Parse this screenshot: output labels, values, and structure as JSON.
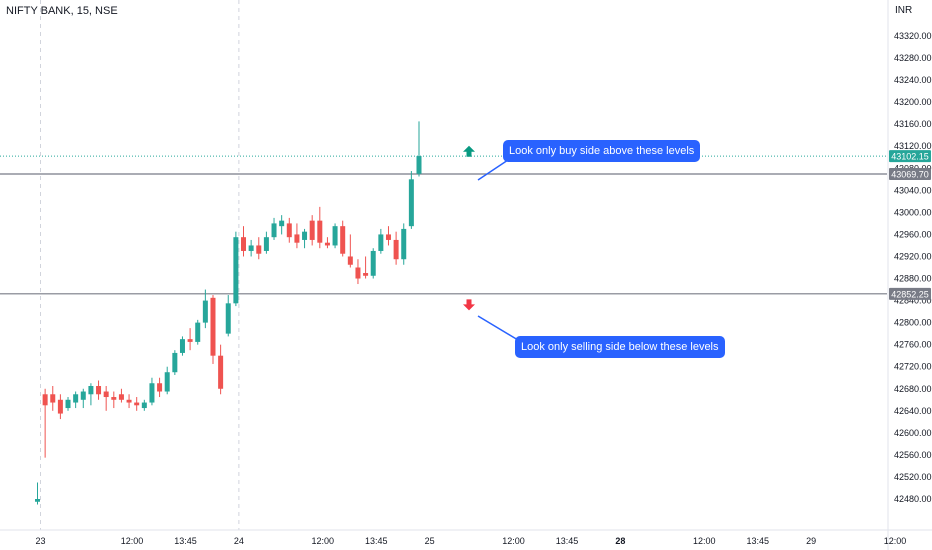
{
  "header": {
    "title": "NIFTY BANK, 15, NSE",
    "currency": "INR"
  },
  "chart_data": {
    "type": "candlestick",
    "ylim": [
      42460,
      43360
    ],
    "y_ticks": [
      43320,
      43280,
      43240,
      43200,
      43160,
      43120,
      43080,
      43040,
      43000,
      42960,
      42920,
      42880,
      42840,
      42800,
      42760,
      42720,
      42680,
      42640,
      42600,
      42560,
      42520,
      42480
    ],
    "y_tick_labels": [
      "43320.00",
      "43280.00",
      "43240.00",
      "43200.00",
      "43160.00",
      "43120.00",
      "43080.00",
      "43040.00",
      "43000.00",
      "42960.00",
      "42920.00",
      "42880.00",
      "42840.00",
      "42800.00",
      "42760.00",
      "42720.00",
      "42680.00",
      "42640.00",
      "42600.00",
      "42560.00",
      "42520.00",
      "42480.00"
    ],
    "x_tick_labels": [
      {
        "label": "23",
        "bold": false,
        "bar": 0
      },
      {
        "label": "12:00",
        "bold": false,
        "bar": 12
      },
      {
        "label": "13:45",
        "bold": false,
        "bar": 19
      },
      {
        "label": "24",
        "bold": false,
        "bar": 26
      },
      {
        "label": "12:00",
        "bold": false,
        "bar": 37
      },
      {
        "label": "13:45",
        "bold": false,
        "bar": 44
      },
      {
        "label": "25",
        "bold": false,
        "bar": 51
      },
      {
        "label": "12:00",
        "bold": false,
        "bar": 62
      },
      {
        "label": "13:45",
        "bold": false,
        "bar": 69
      },
      {
        "label": "28",
        "bold": true,
        "bar": 76
      },
      {
        "label": "12:00",
        "bold": false,
        "bar": 87
      },
      {
        "label": "13:45",
        "bold": false,
        "bar": 94
      },
      {
        "label": "29",
        "bold": false,
        "bar": 101
      },
      {
        "label": "12:00",
        "bold": false,
        "bar": 112
      }
    ],
    "session_dividers": [
      0,
      26
    ],
    "candles": [
      {
        "o": 42475,
        "h": 42510,
        "l": 42470,
        "c": 42480
      },
      {
        "o": 42670,
        "h": 42680,
        "l": 42555,
        "c": 42650
      },
      {
        "o": 42670,
        "h": 42685,
        "l": 42640,
        "c": 42655
      },
      {
        "o": 42660,
        "h": 42670,
        "l": 42625,
        "c": 42635
      },
      {
        "o": 42645,
        "h": 42665,
        "l": 42640,
        "c": 42660
      },
      {
        "o": 42655,
        "h": 42675,
        "l": 42645,
        "c": 42670
      },
      {
        "o": 42660,
        "h": 42680,
        "l": 42645,
        "c": 42675
      },
      {
        "o": 42670,
        "h": 42690,
        "l": 42650,
        "c": 42685
      },
      {
        "o": 42685,
        "h": 42695,
        "l": 42660,
        "c": 42670
      },
      {
        "o": 42675,
        "h": 42685,
        "l": 42640,
        "c": 42665
      },
      {
        "o": 42665,
        "h": 42675,
        "l": 42645,
        "c": 42660
      },
      {
        "o": 42670,
        "h": 42680,
        "l": 42655,
        "c": 42660
      },
      {
        "o": 42660,
        "h": 42670,
        "l": 42645,
        "c": 42655
      },
      {
        "o": 42655,
        "h": 42665,
        "l": 42640,
        "c": 42650
      },
      {
        "o": 42645,
        "h": 42660,
        "l": 42640,
        "c": 42655
      },
      {
        "o": 42655,
        "h": 42700,
        "l": 42650,
        "c": 42690
      },
      {
        "o": 42690,
        "h": 42700,
        "l": 42665,
        "c": 42675
      },
      {
        "o": 42675,
        "h": 42720,
        "l": 42670,
        "c": 42710
      },
      {
        "o": 42710,
        "h": 42750,
        "l": 42705,
        "c": 42745
      },
      {
        "o": 42745,
        "h": 42775,
        "l": 42740,
        "c": 42770
      },
      {
        "o": 42770,
        "h": 42790,
        "l": 42750,
        "c": 42765
      },
      {
        "o": 42765,
        "h": 42805,
        "l": 42760,
        "c": 42800
      },
      {
        "o": 42800,
        "h": 42860,
        "l": 42790,
        "c": 42840
      },
      {
        "o": 42845,
        "h": 42850,
        "l": 42725,
        "c": 42740
      },
      {
        "o": 42740,
        "h": 42760,
        "l": 42670,
        "c": 42680
      },
      {
        "o": 42780,
        "h": 42850,
        "l": 42775,
        "c": 42835
      },
      {
        "o": 42835,
        "h": 42965,
        "l": 42830,
        "c": 42955
      },
      {
        "o": 42955,
        "h": 42975,
        "l": 42920,
        "c": 42930
      },
      {
        "o": 42930,
        "h": 42950,
        "l": 42920,
        "c": 42940
      },
      {
        "o": 42940,
        "h": 42955,
        "l": 42915,
        "c": 42925
      },
      {
        "o": 42930,
        "h": 42965,
        "l": 42925,
        "c": 42955
      },
      {
        "o": 42955,
        "h": 42990,
        "l": 42950,
        "c": 42980
      },
      {
        "o": 42975,
        "h": 42995,
        "l": 42960,
        "c": 42985
      },
      {
        "o": 42980,
        "h": 42990,
        "l": 42945,
        "c": 42955
      },
      {
        "o": 42960,
        "h": 42980,
        "l": 42935,
        "c": 42945
      },
      {
        "o": 42950,
        "h": 42970,
        "l": 42935,
        "c": 42965
      },
      {
        "o": 42985,
        "h": 42995,
        "l": 42940,
        "c": 42950
      },
      {
        "o": 42985,
        "h": 43010,
        "l": 42935,
        "c": 42945
      },
      {
        "o": 42945,
        "h": 42955,
        "l": 42935,
        "c": 42940
      },
      {
        "o": 42940,
        "h": 42980,
        "l": 42935,
        "c": 42975
      },
      {
        "o": 42975,
        "h": 42985,
        "l": 42920,
        "c": 42925
      },
      {
        "o": 42920,
        "h": 42960,
        "l": 42900,
        "c": 42905
      },
      {
        "o": 42900,
        "h": 42915,
        "l": 42870,
        "c": 42880
      },
      {
        "o": 42890,
        "h": 42920,
        "l": 42880,
        "c": 42885
      },
      {
        "o": 42885,
        "h": 42935,
        "l": 42880,
        "c": 42930
      },
      {
        "o": 42930,
        "h": 42970,
        "l": 42925,
        "c": 42960
      },
      {
        "o": 42960,
        "h": 42975,
        "l": 42940,
        "c": 42950
      },
      {
        "o": 42950,
        "h": 42965,
        "l": 42905,
        "c": 42915
      },
      {
        "o": 42915,
        "h": 42980,
        "l": 42905,
        "c": 42970
      },
      {
        "o": 42975,
        "h": 43075,
        "l": 42970,
        "c": 43060
      },
      {
        "o": 43070,
        "h": 43165,
        "l": 43065,
        "c": 43102.15
      }
    ],
    "horizontal_lines": [
      {
        "value": 43069.7,
        "label": "43069.70",
        "color": "#787b86",
        "label_bg": "#787b86"
      },
      {
        "value": 42852.25,
        "label": "42852.25",
        "color": "#787b86",
        "label_bg": "#787b86"
      }
    ],
    "last_price": {
      "value": 43102.15,
      "label": "43102.15",
      "color": "#26a69a"
    },
    "arrows": [
      {
        "direction": "up",
        "value": 43110,
        "color": "#089981"
      },
      {
        "direction": "down",
        "value": 42833,
        "color": "#f23645"
      }
    ],
    "up_color": "#26a69a",
    "down_color": "#ef5350"
  },
  "annotations": {
    "buy": "Look only buy side above these levels",
    "sell": "Look only selling side below these levels"
  }
}
